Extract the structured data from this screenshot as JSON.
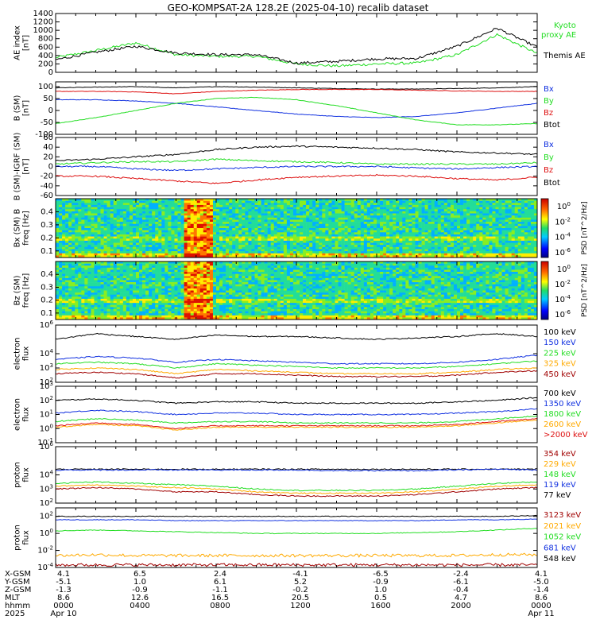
{
  "title": "GEO-KOMPSAT-2A 128.2E (2025-04-10) recalib dataset",
  "colors": {
    "black": "#000000",
    "blue": "#1030e0",
    "green": "#22dd22",
    "red": "#dd1010",
    "orange": "#ffaa00",
    "darkred": "#a00000",
    "darkblue": "#0000c0"
  },
  "chart_data": [
    {
      "type": "line",
      "id": "ae",
      "ylabel": "AE index [nT]",
      "ylim": [
        0,
        1400
      ],
      "yticks": [
        "1400",
        "1200",
        "1000",
        "800",
        "600",
        "400",
        "200",
        "0"
      ],
      "legend": [
        {
          "name": "Kyoto proxy AE",
          "color": "#22dd22"
        },
        {
          "name": "Themis AE",
          "color": "#000000"
        }
      ],
      "x_hours": [
        0,
        2,
        4,
        6,
        8,
        10,
        12,
        14,
        16,
        18,
        20,
        22,
        24
      ],
      "series": [
        {
          "name": "Kyoto proxy AE",
          "color": "#22dd22",
          "values": [
            350,
            520,
            700,
            420,
            380,
            380,
            200,
            150,
            200,
            220,
            420,
            900,
            450
          ]
        },
        {
          "name": "Themis AE",
          "color": "#000000",
          "values": [
            300,
            480,
            620,
            460,
            420,
            420,
            220,
            260,
            320,
            330,
            620,
            1050,
            600
          ]
        }
      ]
    },
    {
      "type": "line",
      "id": "bsm",
      "ylabel": "B (SM) [nT]",
      "ylim": [
        -100,
        120
      ],
      "yticks": [
        "100",
        "50",
        "0",
        "-50",
        "-100"
      ],
      "legend": [
        {
          "name": "Bx",
          "color": "#1030e0"
        },
        {
          "name": "By",
          "color": "#22dd22"
        },
        {
          "name": "Bz",
          "color": "#dd1010"
        },
        {
          "name": "Btot",
          "color": "#000000"
        }
      ],
      "x_hours": [
        0,
        2,
        4,
        6,
        8,
        10,
        12,
        14,
        16,
        18,
        20,
        22,
        24
      ],
      "series": [
        {
          "name": "Btot",
          "color": "#000000",
          "values": [
            95,
            98,
            100,
            95,
            100,
            98,
            95,
            92,
            90,
            90,
            92,
            95,
            100
          ]
        },
        {
          "name": "Bz",
          "color": "#dd1010",
          "values": [
            80,
            80,
            78,
            70,
            80,
            85,
            88,
            88,
            88,
            85,
            82,
            80,
            80
          ]
        },
        {
          "name": "Bx",
          "color": "#1030e0",
          "values": [
            45,
            45,
            40,
            30,
            15,
            0,
            -15,
            -25,
            -30,
            -25,
            -10,
            10,
            30
          ]
        },
        {
          "name": "By",
          "color": "#22dd22",
          "values": [
            -55,
            -30,
            0,
            30,
            50,
            55,
            45,
            20,
            -10,
            -40,
            -60,
            -60,
            -55
          ]
        }
      ]
    },
    {
      "type": "line",
      "id": "bdiff",
      "ylabel": "B (SM)-IGRF (SM) [nT]",
      "ylim": [
        -60,
        60
      ],
      "yticks": [
        "60",
        "40",
        "20",
        "0",
        "-20",
        "-40",
        "-60"
      ],
      "legend": [
        {
          "name": "Bx",
          "color": "#1030e0"
        },
        {
          "name": "By",
          "color": "#22dd22"
        },
        {
          "name": "Bz",
          "color": "#dd1010"
        },
        {
          "name": "Btot",
          "color": "#000000"
        }
      ],
      "x_hours": [
        0,
        2,
        4,
        6,
        8,
        10,
        12,
        14,
        16,
        18,
        20,
        22,
        24
      ],
      "series": [
        {
          "name": "Btot",
          "color": "#000000",
          "values": [
            12,
            15,
            20,
            25,
            35,
            40,
            42,
            40,
            38,
            35,
            30,
            28,
            25
          ]
        },
        {
          "name": "By",
          "color": "#22dd22",
          "values": [
            5,
            8,
            10,
            10,
            15,
            12,
            10,
            8,
            5,
            5,
            5,
            5,
            8
          ]
        },
        {
          "name": "Bx",
          "color": "#1030e0",
          "values": [
            0,
            0,
            -5,
            -8,
            -5,
            -2,
            0,
            0,
            0,
            -3,
            -5,
            -2,
            0
          ]
        },
        {
          "name": "Bz",
          "color": "#dd1010",
          "values": [
            -20,
            -20,
            -25,
            -30,
            -35,
            -28,
            -22,
            -20,
            -18,
            -20,
            -25,
            -28,
            -22
          ]
        }
      ]
    },
    {
      "type": "heatmap",
      "id": "bx_spec",
      "ylabel": "Bx (SM) B freq [Hz]",
      "ylim": [
        0.05,
        0.5
      ],
      "yticks": [
        "0.4",
        "0.3",
        "0.2",
        "0.1"
      ],
      "colorbar_label": "PSD [nT^2/Hz]",
      "colorbar_ticks": [
        "10^0",
        "10^-2",
        "10^-4",
        "10^-6"
      ]
    },
    {
      "type": "heatmap",
      "id": "bz_spec",
      "ylabel": "Bz (SM) freq [Hz]",
      "ylim": [
        0.05,
        0.5
      ],
      "yticks": [
        "0.4",
        "0.3",
        "0.2",
        "0.1"
      ],
      "colorbar_label": "PSD [nT^2/Hz]",
      "colorbar_ticks": [
        "10^0",
        "10^-2",
        "10^-4",
        "10^-6"
      ]
    },
    {
      "type": "line",
      "id": "elec_low",
      "ylabel": "electron flux",
      "log": true,
      "ylim_exp": [
        2,
        6
      ],
      "yticks": [
        "10^6",
        "10^4",
        "10^3",
        "10^2"
      ],
      "legend": [
        {
          "name": "100 keV",
          "color": "#000000"
        },
        {
          "name": "150 keV",
          "color": "#1030e0"
        },
        {
          "name": "225 keV",
          "color": "#22dd22"
        },
        {
          "name": "325 keV",
          "color": "#ffaa00"
        },
        {
          "name": "450 keV",
          "color": "#a00000"
        }
      ],
      "x_hours": [
        0,
        2,
        4,
        6,
        8,
        10,
        12,
        14,
        16,
        18,
        20,
        22,
        24
      ],
      "series": [
        {
          "name": "100 keV",
          "color": "#000000",
          "values": [
            5.0,
            5.4,
            5.2,
            5.0,
            5.3,
            5.2,
            5.2,
            5.1,
            5.0,
            5.1,
            5.2,
            5.4,
            5.2
          ]
        },
        {
          "name": "150 keV",
          "color": "#1030e0",
          "values": [
            3.6,
            3.8,
            3.7,
            3.4,
            3.6,
            3.5,
            3.4,
            3.3,
            3.3,
            3.3,
            3.4,
            3.6,
            3.9
          ]
        },
        {
          "name": "225 keV",
          "color": "#22dd22",
          "values": [
            3.3,
            3.4,
            3.3,
            3.0,
            3.3,
            3.2,
            3.1,
            3.0,
            3.0,
            3.0,
            3.1,
            3.3,
            3.5
          ]
        },
        {
          "name": "325 keV",
          "color": "#ffaa00",
          "values": [
            2.9,
            3.0,
            2.9,
            2.6,
            2.9,
            2.8,
            2.7,
            2.6,
            2.6,
            2.6,
            2.7,
            2.9,
            3.0
          ]
        },
        {
          "name": "450 keV",
          "color": "#a00000",
          "values": [
            2.6,
            2.7,
            2.6,
            2.3,
            2.6,
            2.6,
            2.5,
            2.4,
            2.4,
            2.4,
            2.5,
            2.7,
            2.8
          ]
        }
      ]
    },
    {
      "type": "line",
      "id": "elec_high",
      "ylabel": "electron flux",
      "log": true,
      "ylim_exp": [
        -1,
        3
      ],
      "yticks": [
        "10^3",
        "10^2",
        "10^1",
        "10^0",
        "10^-1"
      ],
      "legend": [
        {
          "name": "700 keV",
          "color": "#000000"
        },
        {
          "name": "1350 keV",
          "color": "#1030e0"
        },
        {
          "name": "1800 keV",
          "color": "#22dd22"
        },
        {
          "name": "2600 keV",
          "color": "#ffaa00"
        },
        {
          "name": ">2000 keV",
          "color": "#dd1010"
        }
      ],
      "x_hours": [
        0,
        2,
        4,
        6,
        8,
        10,
        12,
        14,
        16,
        18,
        20,
        22,
        24
      ],
      "series": [
        {
          "name": "700 keV",
          "color": "#000000",
          "values": [
            2.0,
            2.1,
            2.0,
            1.8,
            1.9,
            1.9,
            1.8,
            1.8,
            1.8,
            1.8,
            1.9,
            2.0,
            2.2
          ]
        },
        {
          "name": "1350 keV",
          "color": "#1030e0",
          "values": [
            1.1,
            1.3,
            1.2,
            1.0,
            1.1,
            1.1,
            1.0,
            1.0,
            1.0,
            1.0,
            1.1,
            1.2,
            1.4
          ]
        },
        {
          "name": "1800 keV",
          "color": "#22dd22",
          "values": [
            0.5,
            0.7,
            0.6,
            0.4,
            0.5,
            0.5,
            0.4,
            0.4,
            0.4,
            0.4,
            0.5,
            0.7,
            0.9
          ]
        },
        {
          "name": "2600 keV",
          "color": "#ffaa00",
          "values": [
            0.1,
            0.3,
            0.2,
            -0.1,
            0.1,
            0.1,
            0.1,
            0.1,
            0.1,
            0.1,
            0.2,
            0.4,
            0.6
          ]
        },
        {
          "name": ">2000 keV",
          "color": "#dd1010",
          "values": [
            0.2,
            0.4,
            0.3,
            0.0,
            0.2,
            0.2,
            0.2,
            0.2,
            0.2,
            0.2,
            0.3,
            0.5,
            0.7
          ]
        }
      ]
    },
    {
      "type": "line",
      "id": "prot_low",
      "ylabel": "proton flux",
      "log": true,
      "ylim_exp": [
        2,
        6
      ],
      "yticks": [
        "10^6",
        "10^4",
        "10^3",
        "10^2"
      ],
      "legend": [
        {
          "name": "354 keV",
          "color": "#a00000"
        },
        {
          "name": "229 keV",
          "color": "#ffaa00"
        },
        {
          "name": "148 keV",
          "color": "#22dd22"
        },
        {
          "name": "119 keV",
          "color": "#1030e0"
        },
        {
          "name": "77 keV",
          "color": "#000000"
        }
      ],
      "x_hours": [
        0,
        2,
        4,
        6,
        8,
        10,
        12,
        14,
        16,
        18,
        20,
        22,
        24
      ],
      "series": [
        {
          "name": "77 keV",
          "color": "#000000",
          "values": [
            4.4,
            4.4,
            4.4,
            4.4,
            4.4,
            4.4,
            4.4,
            4.4,
            4.4,
            4.4,
            4.4,
            4.4,
            4.4
          ]
        },
        {
          "name": "119 keV",
          "color": "#1030e0",
          "values": [
            4.35,
            4.35,
            4.35,
            4.35,
            4.35,
            4.35,
            4.35,
            4.3,
            4.3,
            4.3,
            4.35,
            4.4,
            4.35
          ]
        },
        {
          "name": "148 keV",
          "color": "#22dd22",
          "values": [
            3.4,
            3.5,
            3.4,
            3.3,
            3.2,
            3.0,
            2.9,
            2.9,
            2.9,
            3.0,
            3.2,
            3.4,
            3.5
          ]
        },
        {
          "name": "229 keV",
          "color": "#ffaa00",
          "values": [
            3.2,
            3.3,
            3.2,
            3.1,
            3.0,
            2.8,
            2.7,
            2.7,
            2.7,
            2.8,
            3.0,
            3.2,
            3.3
          ]
        },
        {
          "name": "354 keV",
          "color": "#a00000",
          "values": [
            3.0,
            3.1,
            3.0,
            2.8,
            2.8,
            2.6,
            2.5,
            2.5,
            2.5,
            2.6,
            2.8,
            3.0,
            3.1
          ]
        }
      ]
    },
    {
      "type": "line",
      "id": "prot_high",
      "ylabel": "proton flux",
      "log": true,
      "ylim_exp": [
        -4,
        3
      ],
      "yticks": [
        "10^2",
        "10^0",
        "10^-2",
        "10^-4"
      ],
      "legend": [
        {
          "name": "3123 keV",
          "color": "#a00000"
        },
        {
          "name": "2021 keV",
          "color": "#ffaa00"
        },
        {
          "name": "1052 keV",
          "color": "#22dd22"
        },
        {
          "name": "681 keV",
          "color": "#1030e0"
        },
        {
          "name": "548 keV",
          "color": "#000000"
        }
      ],
      "x_hours": [
        0,
        2,
        4,
        6,
        8,
        10,
        12,
        14,
        16,
        18,
        20,
        22,
        24
      ],
      "series": [
        {
          "name": "548 keV",
          "color": "#000000",
          "values": [
            2.0,
            2.0,
            2.0,
            2.0,
            2.0,
            2.0,
            2.0,
            2.0,
            2.0,
            2.0,
            2.0,
            2.0,
            2.1
          ]
        },
        {
          "name": "681 keV",
          "color": "#1030e0",
          "values": [
            1.6,
            1.6,
            1.6,
            1.5,
            1.5,
            1.5,
            1.5,
            1.5,
            1.5,
            1.5,
            1.6,
            1.6,
            1.7
          ]
        },
        {
          "name": "1052 keV",
          "color": "#22dd22",
          "values": [
            0.3,
            0.4,
            0.3,
            0.2,
            0.1,
            0.0,
            0.0,
            0.0,
            0.0,
            0.1,
            0.2,
            0.4,
            0.6
          ]
        },
        {
          "name": "2021 keV",
          "color": "#ffaa00",
          "values": [
            -2.6,
            -2.5,
            -2.6,
            -2.6,
            -2.6,
            -2.6,
            -2.6,
            -2.6,
            -2.6,
            -2.6,
            -2.6,
            -2.5,
            -2.5
          ]
        },
        {
          "name": "3123 keV",
          "color": "#a00000",
          "values": [
            -3.7,
            -3.7,
            -3.7,
            -3.7,
            -3.7,
            -3.7,
            -3.7,
            -3.7,
            -3.7,
            -3.7,
            -3.7,
            -3.7,
            -3.7
          ]
        }
      ]
    }
  ],
  "xaxis": {
    "row_labels": [
      "X-GSM",
      "Y-GSM",
      "Z-GSM",
      "MLT",
      "hhmm",
      "2025"
    ],
    "columns": [
      [
        "4.1",
        "-5.1",
        "-1.3",
        "8.6",
        "0000",
        "Apr 10"
      ],
      [
        "6.5",
        "1.0",
        "-0.9",
        "12.6",
        "0400",
        ""
      ],
      [
        "2.4",
        "6.1",
        "-1.1",
        "16.5",
        "0800",
        ""
      ],
      [
        "-4.1",
        "5.2",
        "-0.2",
        "20.5",
        "1200",
        ""
      ],
      [
        "-6.5",
        "-0.9",
        "1.0",
        "0.5",
        "1600",
        ""
      ],
      [
        "-2.4",
        "-6.1",
        "-0.4",
        "4.7",
        "2000",
        ""
      ],
      [
        "4.1",
        "-5.0",
        "-1.4",
        "8.6",
        "0000",
        "Apr 11"
      ]
    ]
  }
}
